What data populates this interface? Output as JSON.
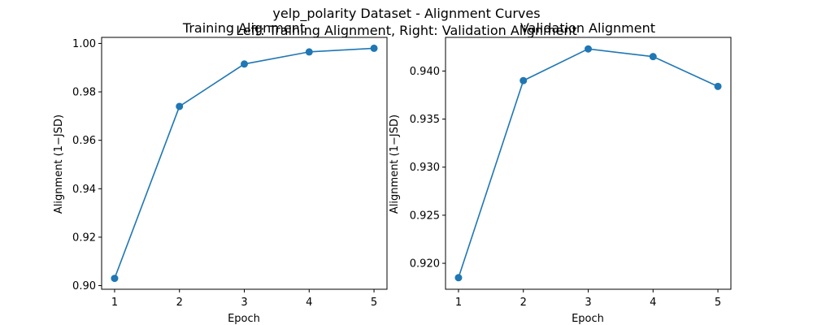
{
  "figure": {
    "title_line1": "yelp_polarity Dataset - Alignment Curves",
    "title_line2": "Left: Training Alignment, Right: Validation Alignment"
  },
  "colors": {
    "line": "#1f77b4",
    "axes": "#000000",
    "background": "#ffffff"
  },
  "chart_data": [
    {
      "type": "line",
      "title": "Training Alignment",
      "xlabel": "Epoch",
      "ylabel": "Alignment (1−JSD)",
      "x": [
        1,
        2,
        3,
        4,
        5
      ],
      "values": [
        0.903,
        0.974,
        0.9915,
        0.9965,
        0.998
      ],
      "xlim": [
        0.8,
        5.2
      ],
      "ylim": [
        0.8985,
        1.0025
      ],
      "xticks": [
        1,
        2,
        3,
        4,
        5
      ],
      "xtick_labels": [
        "1",
        "2",
        "3",
        "4",
        "5"
      ],
      "yticks": [
        0.9,
        0.92,
        0.94,
        0.96,
        0.98,
        1.0
      ],
      "ytick_labels": [
        "0.90",
        "0.92",
        "0.94",
        "0.96",
        "0.98",
        "1.00"
      ],
      "grid": false,
      "markers": true
    },
    {
      "type": "line",
      "title": "Validation Alignment",
      "xlabel": "Epoch",
      "ylabel": "Alignment (1−JSD)",
      "x": [
        1,
        2,
        3,
        4,
        5
      ],
      "values": [
        0.9185,
        0.939,
        0.9423,
        0.9415,
        0.9384
      ],
      "xlim": [
        0.8,
        5.2
      ],
      "ylim": [
        0.9173,
        0.9435
      ],
      "xticks": [
        1,
        2,
        3,
        4,
        5
      ],
      "xtick_labels": [
        "1",
        "2",
        "3",
        "4",
        "5"
      ],
      "yticks": [
        0.92,
        0.925,
        0.93,
        0.935,
        0.94
      ],
      "ytick_labels": [
        "0.920",
        "0.925",
        "0.930",
        "0.935",
        "0.940"
      ],
      "grid": false,
      "markers": true
    }
  ]
}
